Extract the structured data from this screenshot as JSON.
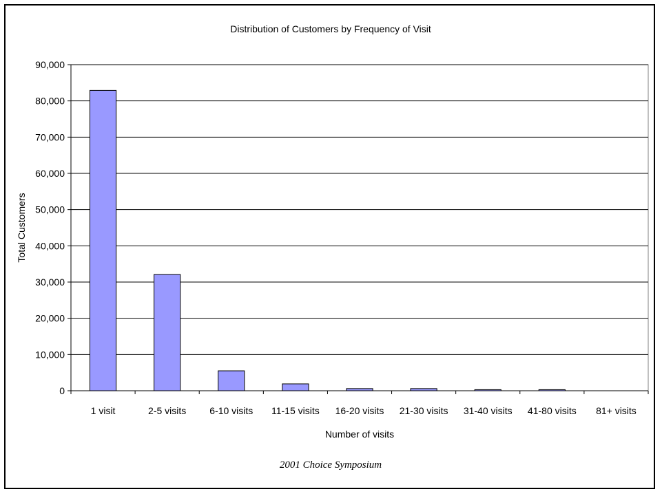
{
  "chart_data": {
    "type": "bar",
    "title": "Distribution of Customers by Frequency of Visit",
    "xlabel": "Number of visits",
    "ylabel": "Total Customers",
    "categories": [
      "1 visit",
      "2-5 visits",
      "6-10 visits",
      "11-15 visits",
      "16-20 visits",
      "21-30 visits",
      "31-40 visits",
      "41-80 visits",
      "81+ visits"
    ],
    "values": [
      82900,
      32100,
      5500,
      1900,
      600,
      600,
      300,
      300,
      0
    ],
    "ylim": [
      0,
      90000
    ],
    "yticks": [
      0,
      10000,
      20000,
      30000,
      40000,
      50000,
      60000,
      70000,
      80000,
      90000
    ],
    "ytick_labels": [
      "0",
      "10,000",
      "20,000",
      "30,000",
      "40,000",
      "50,000",
      "60,000",
      "70,000",
      "80,000",
      "90,000"
    ],
    "grid": true,
    "legend": "none",
    "bar_color": "#9999ff",
    "bar_edge_color": "#000000",
    "grid_color": "#000000",
    "plot_border_color": "#808080"
  },
  "footer": "2001 Choice Symposium"
}
